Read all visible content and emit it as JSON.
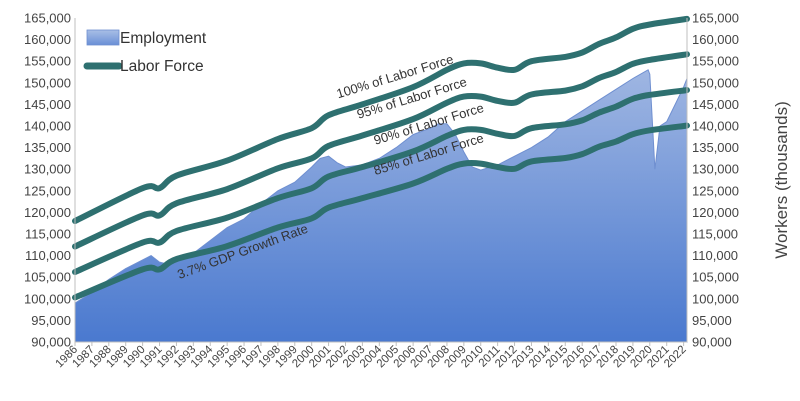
{
  "chart_data": {
    "type": "area",
    "ylabel_right": "Workers (thousands)",
    "ylim": [
      90000,
      165000
    ],
    "y_ticks": [
      "90,000",
      "95,000",
      "100,000",
      "105,000",
      "110,000",
      "115,000",
      "120,000",
      "125,000",
      "130,000",
      "135,000",
      "140,000",
      "145,000",
      "150,000",
      "155,000",
      "160,000",
      "165,000"
    ],
    "x_ticks": [
      "1986",
      "1987",
      "1988",
      "1989",
      "1990",
      "1991",
      "1992",
      "1993",
      "1994",
      "1995",
      "1996",
      "1997",
      "1998",
      "1999",
      "2000",
      "2001",
      "2002",
      "2003",
      "2004",
      "2005",
      "2006",
      "2007",
      "2008",
      "2009",
      "2010",
      "2011",
      "2012",
      "2013",
      "2014",
      "2015",
      "2016",
      "2017",
      "2018",
      "2019",
      "2020",
      "2021",
      "2022"
    ],
    "legend": [
      {
        "name": "Employment",
        "kind": "area"
      },
      {
        "name": "Labor Force",
        "kind": "line"
      }
    ],
    "colors": {
      "area_top": "#7f9ed8",
      "area_bottom": "#4c7bd0",
      "area_edge": "#6e8fd0",
      "line": "#2e7070"
    },
    "employment": {
      "x": [
        1986,
        1987,
        1988,
        1989,
        1990,
        1990.5,
        1991,
        1991.5,
        1992,
        1993,
        1994,
        1995,
        1996,
        1997,
        1998,
        1999,
        2000,
        2000.5,
        2001,
        2001.5,
        2002,
        2003,
        2004,
        2005,
        2006,
        2007,
        2007.5,
        2008,
        2008.5,
        2009,
        2009.5,
        2010,
        2011,
        2012,
        2013,
        2014,
        2015,
        2016,
        2017,
        2018,
        2019,
        2019.9,
        2020.0,
        2020.3,
        2020.6,
        2021,
        2021.5,
        2022,
        2022.2
      ],
      "y": [
        99000,
        101500,
        104500,
        107000,
        109000,
        110000,
        108500,
        108000,
        108500,
        110500,
        113500,
        116500,
        118500,
        122000,
        125000,
        127000,
        130500,
        132500,
        133000,
        131500,
        130500,
        131000,
        132500,
        135000,
        138000,
        139500,
        140500,
        140500,
        138000,
        134000,
        130500,
        129800,
        131000,
        133000,
        135000,
        137500,
        141000,
        143500,
        146000,
        148500,
        151000,
        153000,
        152000,
        130000,
        140000,
        141000,
        145000,
        149000,
        151000
      ]
    },
    "labor_force_lines": [
      {
        "label": "100% of Labor Force",
        "x": [
          1986,
          1990,
          1991,
          1992,
          1995,
          1998,
          2000,
          2001,
          2003,
          2006,
          2008,
          2009,
          2010,
          2011,
          2012,
          2013,
          2015,
          2016,
          2017,
          2018,
          2019,
          2020,
          2022.2
        ],
        "y": [
          118000,
          125600,
          125600,
          128500,
          132000,
          137000,
          139500,
          142500,
          145000,
          149000,
          153000,
          154500,
          154500,
          153500,
          153000,
          155000,
          156000,
          157000,
          159000,
          160500,
          162500,
          163500,
          164800
        ]
      },
      {
        "label": "95% of Labor Force",
        "x": [
          1986,
          1990,
          1991,
          1992,
          1995,
          1998,
          2000,
          2001,
          2003,
          2006,
          2008,
          2009,
          2010,
          2011,
          2012,
          2013,
          2015,
          2016,
          2017,
          2018,
          2019,
          2020,
          2022.2
        ],
        "y": [
          112100,
          119300,
          119300,
          122100,
          125400,
          130200,
          132500,
          135400,
          137800,
          141600,
          145400,
          146800,
          146800,
          145800,
          145400,
          147300,
          148200,
          149200,
          151100,
          152500,
          154400,
          155300,
          156600
        ]
      },
      {
        "label": "90% of Labor Force",
        "x": [
          1986,
          1990,
          1991,
          1992,
          1995,
          1998,
          2000,
          2001,
          2003,
          2006,
          2008,
          2009,
          2010,
          2011,
          2012,
          2013,
          2015,
          2016,
          2017,
          2018,
          2019,
          2020,
          2022.2
        ],
        "y": [
          106200,
          113000,
          113000,
          115700,
          118800,
          123300,
          125600,
          128300,
          130500,
          134100,
          137700,
          139100,
          139100,
          138200,
          137700,
          139500,
          140400,
          141300,
          143100,
          144500,
          146300,
          147200,
          148300
        ]
      },
      {
        "label": "85% of Labor Force",
        "x": [
          1986,
          1990,
          1991,
          1992,
          1995,
          1998,
          2000,
          2001,
          2003,
          2006,
          2008,
          2009,
          2010,
          2011,
          2012,
          2013,
          2015,
          2016,
          2017,
          2018,
          2019,
          2020,
          2022.2
        ],
        "y": [
          100300,
          106800,
          106800,
          109200,
          112200,
          116500,
          118600,
          121100,
          123300,
          126700,
          130100,
          131300,
          131300,
          130500,
          130100,
          131800,
          132600,
          133500,
          135200,
          136400,
          138100,
          139000,
          140100
        ]
      }
    ],
    "annotations": [
      {
        "text": "100% of Labor Force",
        "anchor_year": 2005,
        "anchor_value": 150500,
        "angle": -17
      },
      {
        "text": "95% of Labor Force",
        "anchor_year": 2006,
        "anchor_value": 145500,
        "angle": -17
      },
      {
        "text": "90% of Labor Force",
        "anchor_year": 2007,
        "anchor_value": 139500,
        "angle": -17
      },
      {
        "text": "85% of Labor Force",
        "anchor_year": 2007,
        "anchor_value": 132500,
        "angle": -17
      },
      {
        "text": "3.7% GDP Growth Rate",
        "anchor_year": 1996,
        "anchor_value": 110000,
        "angle": -20
      }
    ]
  }
}
